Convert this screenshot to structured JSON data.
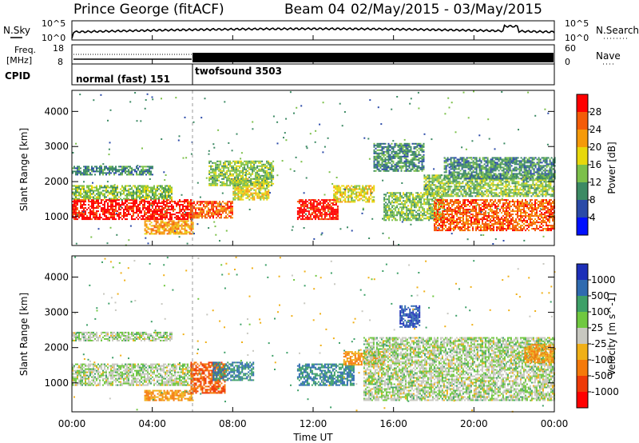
{
  "header": {
    "station": "Prince George (fitACF)",
    "beam": "Beam 04",
    "dates": "02/May/2015 - 03/May/2015"
  },
  "noise_panel": {
    "left_label": "N.Sky",
    "right_label": "N.Search",
    "left_ticks": [
      "10^5",
      "10^0"
    ],
    "right_ticks": [
      "10^5",
      "10^0"
    ]
  },
  "freq_panel": {
    "left_label_1": "Freq.",
    "left_label_2": "[MHz]",
    "left_ticks": [
      "18",
      "8"
    ],
    "right_label": "Nave",
    "right_ticks": [
      "60",
      "0"
    ]
  },
  "cpid_panel": {
    "label": "CPID",
    "modes": [
      {
        "name": "normal (fast) 151",
        "start_hour": 0,
        "end_hour": 6
      },
      {
        "name": "twofsound 3503",
        "start_hour": 6,
        "end_hour": 24
      }
    ]
  },
  "x_axis": {
    "label": "Time UT",
    "ticks": [
      "00:00",
      "04:00",
      "08:00",
      "12:00",
      "16:00",
      "20:00",
      "00:00"
    ],
    "range_hours": [
      0,
      24
    ]
  },
  "power_panel": {
    "y_label": "Slant Range [km]",
    "y_ticks": [
      "1000",
      "2000",
      "3000",
      "4000"
    ],
    "y_range_km": [
      180,
      4600
    ],
    "colorbar_label": "Power [dB]",
    "colorbar_ticks": [
      "4",
      "8",
      "12",
      "16",
      "20",
      "24",
      "28"
    ],
    "colors": [
      "#0010ff",
      "#2a4aa8",
      "#3c8a64",
      "#7cc04a",
      "#e8d80c",
      "#f59a0a",
      "#f45c08",
      "#ff0000"
    ]
  },
  "velocity_panel": {
    "y_label": "Slant Range [km]",
    "y_ticks": [
      "1000",
      "2000",
      "3000",
      "4000"
    ],
    "y_range_km": [
      180,
      4600
    ],
    "colorbar_label": "Velocity [m s^-1]",
    "colorbar_ticks": [
      "1000",
      "500",
      "100",
      "25",
      "-25",
      "-100",
      "-500",
      "-1000"
    ],
    "colors": [
      "#1d2fb8",
      "#2f6bb0",
      "#3ea068",
      "#70c840",
      "#c8c8c0",
      "#f0b018",
      "#f57a0a",
      "#ee3a08",
      "#ff0000"
    ]
  },
  "chart_data": {
    "type": "heatmap",
    "title": "Prince George (fitACF) Beam 04 02/May/2015 - 03/May/2015",
    "xlabel": "Time UT",
    "ylabel": "Slant Range [km]",
    "x_range_hours": [
      0,
      24
    ],
    "ylim": [
      180,
      4600
    ],
    "power_regions": [
      {
        "t0": 0.0,
        "t1": 6.0,
        "r0": 950,
        "r1": 1500,
        "dB": 28
      },
      {
        "t0": 0.0,
        "t1": 5.0,
        "r0": 1500,
        "r1": 1900,
        "dB": 12
      },
      {
        "t0": 0.0,
        "t1": 4.0,
        "r0": 2200,
        "r1": 2450,
        "dB": 8
      },
      {
        "t0": 3.6,
        "t1": 6.0,
        "r0": 500,
        "r1": 900,
        "dB": 20
      },
      {
        "t0": 5.8,
        "t1": 8.0,
        "r0": 950,
        "r1": 1450,
        "dB": 24
      },
      {
        "t0": 8.0,
        "t1": 9.8,
        "r0": 1500,
        "r1": 2100,
        "dB": 16
      },
      {
        "t0": 6.8,
        "t1": 10.0,
        "r0": 1900,
        "r1": 2600,
        "dB": 12
      },
      {
        "t0": 11.2,
        "t1": 13.2,
        "r0": 950,
        "r1": 1500,
        "dB": 28
      },
      {
        "t0": 13.0,
        "t1": 15.0,
        "r0": 1400,
        "r1": 1900,
        "dB": 16
      },
      {
        "t0": 15.0,
        "t1": 17.5,
        "r0": 2300,
        "r1": 3100,
        "dB": 8
      },
      {
        "t0": 15.5,
        "t1": 18.5,
        "r0": 900,
        "r1": 1700,
        "dB": 12
      },
      {
        "t0": 18.0,
        "t1": 24.0,
        "r0": 600,
        "r1": 1500,
        "dB": 24
      },
      {
        "t0": 17.5,
        "t1": 24.0,
        "r0": 1600,
        "r1": 2200,
        "dB": 12
      },
      {
        "t0": 18.5,
        "t1": 24.0,
        "r0": 2100,
        "r1": 2700,
        "dB": 8
      }
    ],
    "velocity_regions": [
      {
        "t0": 0.0,
        "t1": 6.0,
        "r0": 950,
        "r1": 1550,
        "v": 0
      },
      {
        "t0": 0.0,
        "t1": 5.0,
        "r0": 2200,
        "r1": 2450,
        "v": 0
      },
      {
        "t0": 3.6,
        "t1": 6.0,
        "r0": 500,
        "r1": 800,
        "v": -100
      },
      {
        "t0": 5.9,
        "t1": 7.6,
        "r0": 700,
        "r1": 1600,
        "v": -500
      },
      {
        "t0": 7.0,
        "t1": 9.0,
        "r0": 1100,
        "r1": 1600,
        "v": 100
      },
      {
        "t0": 11.2,
        "t1": 14.0,
        "r0": 950,
        "r1": 1550,
        "v": 100
      },
      {
        "t0": 13.5,
        "t1": 15.5,
        "r0": 1500,
        "r1": 1900,
        "v": -100
      },
      {
        "t0": 16.3,
        "t1": 17.3,
        "r0": 2600,
        "r1": 3200,
        "v": 500
      },
      {
        "t0": 14.5,
        "t1": 24.0,
        "r0": 500,
        "r1": 2300,
        "v": 0
      },
      {
        "t0": 22.5,
        "t1": 24.0,
        "r0": 1600,
        "r1": 2100,
        "v": -100
      }
    ]
  }
}
